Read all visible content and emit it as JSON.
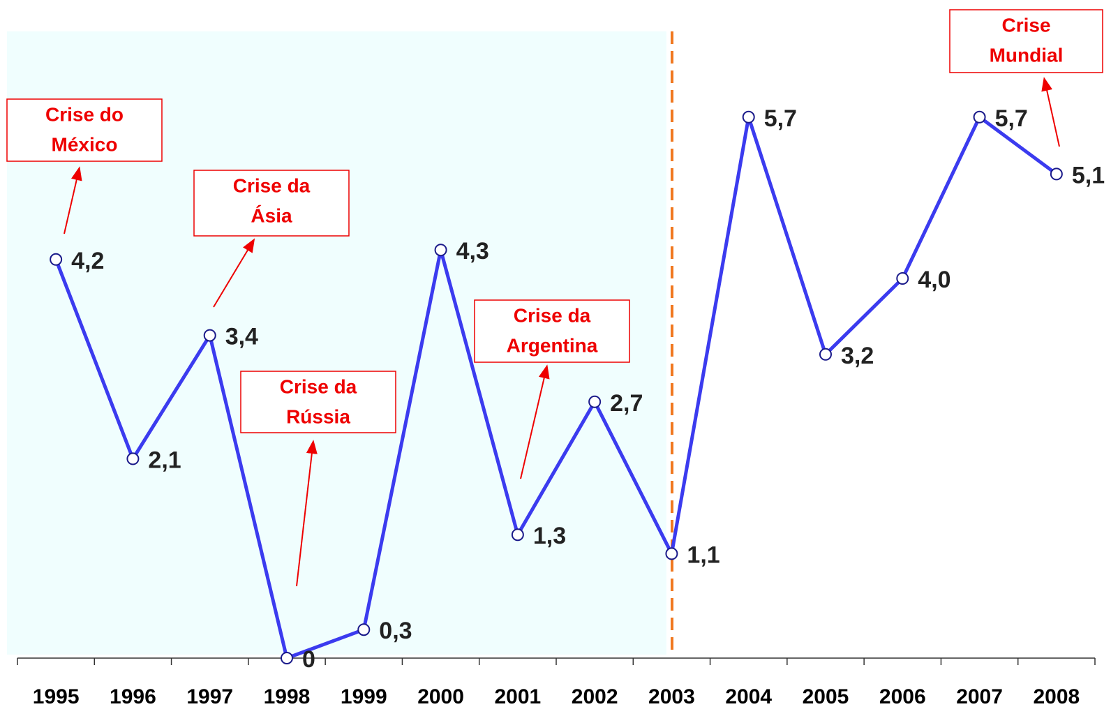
{
  "chart_data": {
    "type": "line",
    "categories": [
      "1995",
      "1996",
      "1997",
      "1998",
      "1999",
      "2000",
      "2001",
      "2002",
      "2003",
      "2004",
      "2005",
      "2006",
      "2007",
      "2008"
    ],
    "values": [
      4.2,
      2.1,
      3.4,
      0,
      0.3,
      4.3,
      1.3,
      2.7,
      1.1,
      5.7,
      3.2,
      4.0,
      5.7,
      5.1
    ],
    "value_labels": [
      "4,2",
      "2,1",
      "3,4",
      "0",
      "0,3",
      "4,3",
      "1,3",
      "2,7",
      "1,1",
      "5,7",
      "3,2",
      "4,0",
      "5,7",
      "5,1"
    ],
    "color": "#3b3bef",
    "ylim": [
      0,
      6.75
    ],
    "annotations": [
      {
        "lines": [
          "Crise do",
          "México"
        ]
      },
      {
        "lines": [
          "Crise da",
          "Ásia"
        ]
      },
      {
        "lines": [
          "Crise da",
          "Rússia"
        ]
      },
      {
        "lines": [
          "Crise da",
          "Argentina"
        ]
      },
      {
        "lines": [
          "Crise",
          "Mundial"
        ]
      }
    ]
  }
}
